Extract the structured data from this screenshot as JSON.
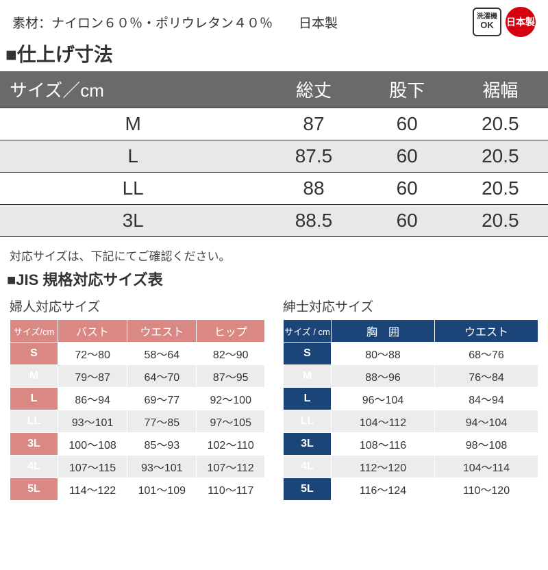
{
  "top": {
    "material": "素材：ナイロン６０％・ポリウレタン４０％　　日本製",
    "washer_l1": "洗濯機",
    "washer_l2": "OK",
    "japan_badge": "日本製"
  },
  "main": {
    "title": "■仕上げ寸法",
    "columns": [
      "サイズ／cm",
      "総丈",
      "股下",
      "裾幅"
    ],
    "rows": [
      {
        "size": "M",
        "c1": "87",
        "c2": "60",
        "c3": "20.5",
        "alt": false
      },
      {
        "size": "L",
        "c1": "87.5",
        "c2": "60",
        "c3": "20.5",
        "alt": true
      },
      {
        "size": "LL",
        "c1": "88",
        "c2": "60",
        "c3": "20.5",
        "alt": false
      },
      {
        "size": "3L",
        "c1": "88.5",
        "c2": "60",
        "c3": "20.5",
        "alt": true
      }
    ]
  },
  "note": "対応サイズは、下記にてご確認ください。",
  "jis": {
    "title": "■JIS 規格対応サイズ表",
    "women": {
      "subtitle": "婦人対応サイズ",
      "columns": [
        "サイズ/cm",
        "バスト",
        "ウエスト",
        "ヒップ"
      ],
      "rows": [
        {
          "sz": "S",
          "c1": "72～80",
          "c2": "58～64",
          "c3": "82～90",
          "alt": false
        },
        {
          "sz": "M",
          "c1": "79～87",
          "c2": "64～70",
          "c3": "87～95",
          "alt": true
        },
        {
          "sz": "L",
          "c1": "86～94",
          "c2": "69～77",
          "c3": "92～100",
          "alt": false
        },
        {
          "sz": "LL",
          "c1": "93～101",
          "c2": "77～85",
          "c3": "97～105",
          "alt": true
        },
        {
          "sz": "3L",
          "c1": "100～108",
          "c2": "85～93",
          "c3": "102～110",
          "alt": false
        },
        {
          "sz": "4L",
          "c1": "107～115",
          "c2": "93～101",
          "c3": "107～112",
          "alt": true
        },
        {
          "sz": "5L",
          "c1": "114～122",
          "c2": "101～109",
          "c3": "110～117",
          "alt": false
        }
      ]
    },
    "men": {
      "subtitle": "紳士対応サイズ",
      "columns": [
        "サイズ / cm",
        "胸　囲",
        "ウエスト"
      ],
      "rows": [
        {
          "sz": "S",
          "c1": "80～88",
          "c2": "68～76",
          "alt": false
        },
        {
          "sz": "M",
          "c1": "88～96",
          "c2": "76～84",
          "alt": true
        },
        {
          "sz": "L",
          "c1": "96～104",
          "c2": "84～94",
          "alt": false
        },
        {
          "sz": "LL",
          "c1": "104～112",
          "c2": "94～104",
          "alt": true
        },
        {
          "sz": "3L",
          "c1": "108～116",
          "c2": "98～108",
          "alt": false
        },
        {
          "sz": "4L",
          "c1": "112～120",
          "c2": "104～114",
          "alt": true
        },
        {
          "sz": "5L",
          "c1": "116～124",
          "c2": "110～120",
          "alt": false
        }
      ]
    }
  }
}
